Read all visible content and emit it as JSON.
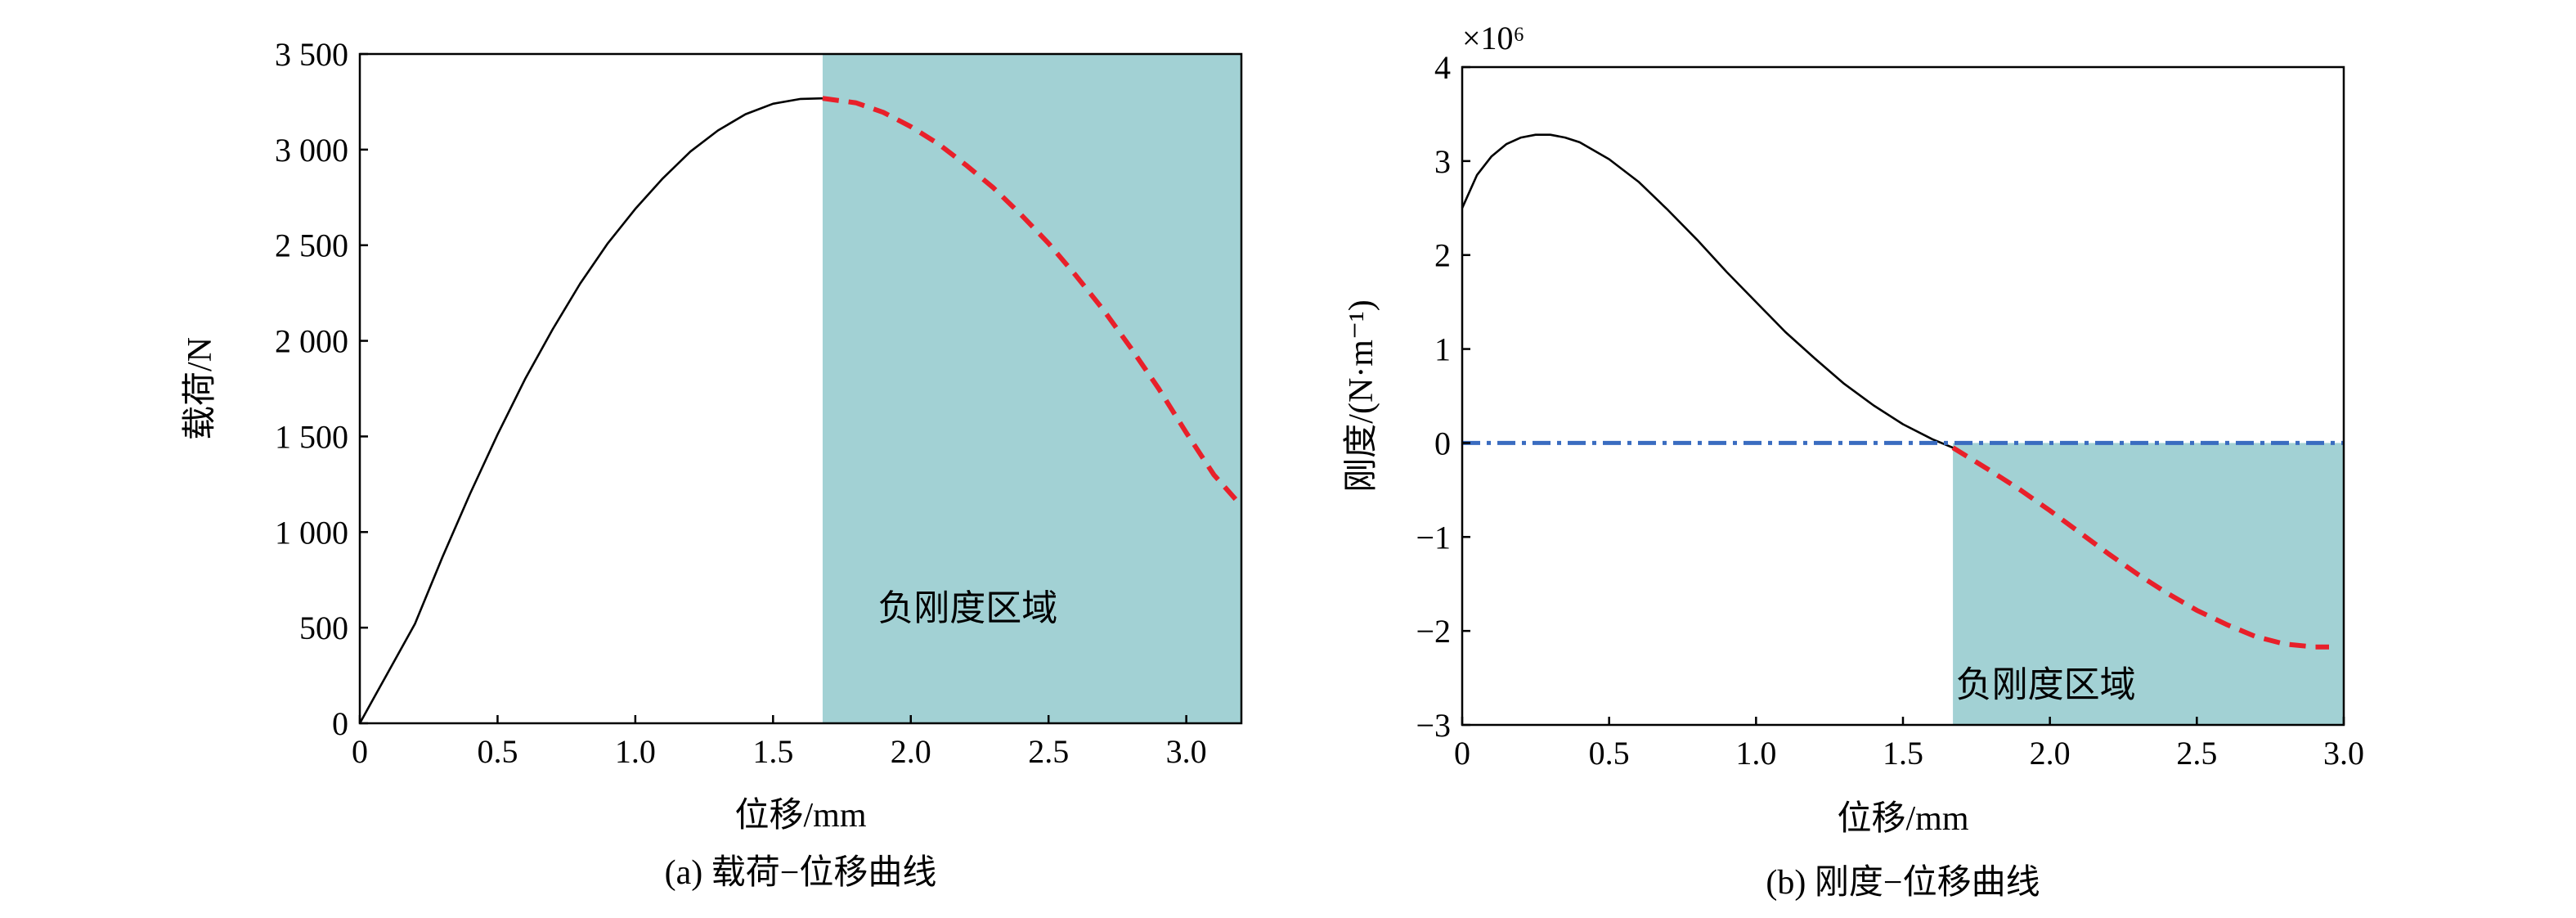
{
  "chart_data": [
    {
      "type": "line",
      "id": "a",
      "caption": "(a) 载荷−位移曲线",
      "xlabel": "位移/mm",
      "ylabel": "载荷/N",
      "xlim": [
        0,
        3.2
      ],
      "ylim": [
        0,
        3500
      ],
      "xticks": [
        0,
        0.5,
        1.0,
        1.5,
        2.0,
        2.5,
        3.0
      ],
      "xtick_labels": [
        "0",
        "0.5",
        "1.0",
        "1.5",
        "2.0",
        "2.5",
        "3.0"
      ],
      "yticks": [
        0,
        500,
        1000,
        1500,
        2000,
        2500,
        3000,
        3500
      ],
      "ytick_labels": [
        "0",
        "500",
        "1 000",
        "1 500",
        "2 000",
        "2 500",
        "3 000",
        "3 500"
      ],
      "region": {
        "x_start": 1.68,
        "x_end": 3.2,
        "y_start": 0,
        "y_end": 3500,
        "color": "#a2d1d4",
        "label": "负刚度区域",
        "label_pos": [
          1.88,
          540
        ]
      },
      "series": [
        {
          "style": "solid",
          "color": "#000000",
          "x": [
            0,
            0.05,
            0.1,
            0.2,
            0.3,
            0.4,
            0.5,
            0.6,
            0.7,
            0.8,
            0.9,
            1.0,
            1.1,
            1.2,
            1.3,
            1.4,
            1.5,
            1.6,
            1.68
          ],
          "y": [
            0,
            130,
            260,
            520,
            870,
            1200,
            1510,
            1800,
            2060,
            2300,
            2510,
            2690,
            2850,
            2990,
            3100,
            3185,
            3240,
            3265,
            3268
          ]
        },
        {
          "style": "dashed",
          "color": "#e8202a",
          "x": [
            1.68,
            1.8,
            1.9,
            2.0,
            2.1,
            2.2,
            2.3,
            2.4,
            2.5,
            2.6,
            2.7,
            2.8,
            2.9,
            3.0,
            3.1,
            3.18
          ],
          "y": [
            3268,
            3245,
            3195,
            3120,
            3030,
            2920,
            2800,
            2660,
            2510,
            2340,
            2160,
            1960,
            1750,
            1520,
            1300,
            1170
          ]
        }
      ]
    },
    {
      "type": "line",
      "id": "b",
      "caption": "(b) 刚度−位移曲线",
      "xlabel": "位移/mm",
      "ylabel": "刚度/(N·m⁻¹)",
      "exponent_label": "×10⁶",
      "xlim": [
        0,
        3.0
      ],
      "ylim": [
        -3,
        4
      ],
      "xticks": [
        0,
        0.5,
        1.0,
        1.5,
        2.0,
        2.5,
        3.0
      ],
      "xtick_labels": [
        "0",
        "0.5",
        "1.0",
        "1.5",
        "2.0",
        "2.5",
        "3.0"
      ],
      "yticks": [
        -3,
        -2,
        -1,
        0,
        1,
        2,
        3,
        4
      ],
      "ytick_labels": [
        "−3",
        "−2",
        "−1",
        "0",
        "1",
        "2",
        "3",
        "4"
      ],
      "region": {
        "x_start": 1.67,
        "x_end": 3.0,
        "y_start": -3,
        "y_end": 0,
        "color": "#a2d1d4",
        "label": "负刚度区域",
        "label_pos": [
          1.68,
          -2.7
        ]
      },
      "series": [
        {
          "style": "solid",
          "color": "#000000",
          "x": [
            0,
            0.05,
            0.1,
            0.15,
            0.2,
            0.25,
            0.3,
            0.35,
            0.4,
            0.5,
            0.6,
            0.7,
            0.8,
            0.9,
            1.0,
            1.1,
            1.2,
            1.3,
            1.4,
            1.5,
            1.6,
            1.67
          ],
          "y": [
            2.5,
            2.85,
            3.05,
            3.18,
            3.25,
            3.28,
            3.28,
            3.25,
            3.2,
            3.02,
            2.78,
            2.48,
            2.16,
            1.82,
            1.5,
            1.18,
            0.9,
            0.63,
            0.4,
            0.2,
            0.04,
            -0.05
          ]
        },
        {
          "style": "dashed",
          "color": "#e8202a",
          "x": [
            1.67,
            1.8,
            1.9,
            2.0,
            2.1,
            2.2,
            2.3,
            2.4,
            2.5,
            2.6,
            2.7,
            2.8,
            2.9,
            2.95
          ],
          "y": [
            -0.05,
            -0.3,
            -0.5,
            -0.72,
            -0.95,
            -1.18,
            -1.4,
            -1.6,
            -1.78,
            -1.93,
            -2.06,
            -2.14,
            -2.17,
            -2.17
          ]
        },
        {
          "style": "dashdot",
          "color": "#3a6cc0",
          "x": [
            0,
            3.0
          ],
          "y": [
            0,
            0
          ]
        }
      ]
    }
  ]
}
